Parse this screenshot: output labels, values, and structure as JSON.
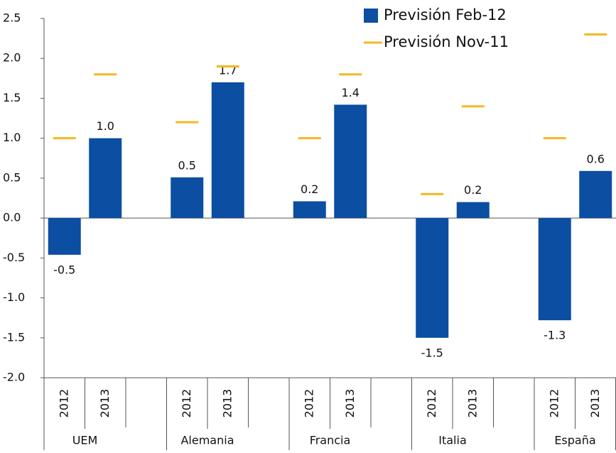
{
  "chart_data": {
    "type": "bar",
    "categories": [
      "2012",
      "2013",
      "2012",
      "2013",
      "2012",
      "2013",
      "2012",
      "2013",
      "2012",
      "2013"
    ],
    "groups": [
      "UEM",
      "Alemania",
      "Francia",
      "Italia",
      "España"
    ],
    "series": [
      {
        "name": "Previsión Feb-12",
        "type": "bar",
        "color": "#0b4ea2",
        "values": [
          -0.46,
          1.0,
          0.51,
          1.7,
          0.21,
          1.42,
          -1.5,
          0.2,
          -1.28,
          0.59
        ],
        "value_labels": [
          "-0.5",
          "1.0",
          "0.5",
          "1.7",
          "0.2",
          "1.4",
          "-1.5",
          "0.2",
          "-1.3",
          "0.6"
        ]
      },
      {
        "name": "Previsión Nov-11",
        "type": "dash",
        "color": "#f5b820",
        "values": [
          1.0,
          1.8,
          1.2,
          1.9,
          1.0,
          1.8,
          0.3,
          1.4,
          1.0,
          2.3
        ]
      }
    ],
    "ylim": [
      -2,
      2.5
    ],
    "yticks": [
      {
        "value": -2,
        "label": "-2.0"
      },
      -1.5,
      {
        "value": -1,
        "label": "-1.0"
      },
      -0.5,
      {
        "value": 0,
        "label": "0.0"
      },
      0.5,
      {
        "value": 1,
        "label": "1.0"
      },
      1.5,
      {
        "value": 2,
        "label": "2.0"
      },
      2.5
    ],
    "grid": false,
    "legend": "upper right"
  }
}
